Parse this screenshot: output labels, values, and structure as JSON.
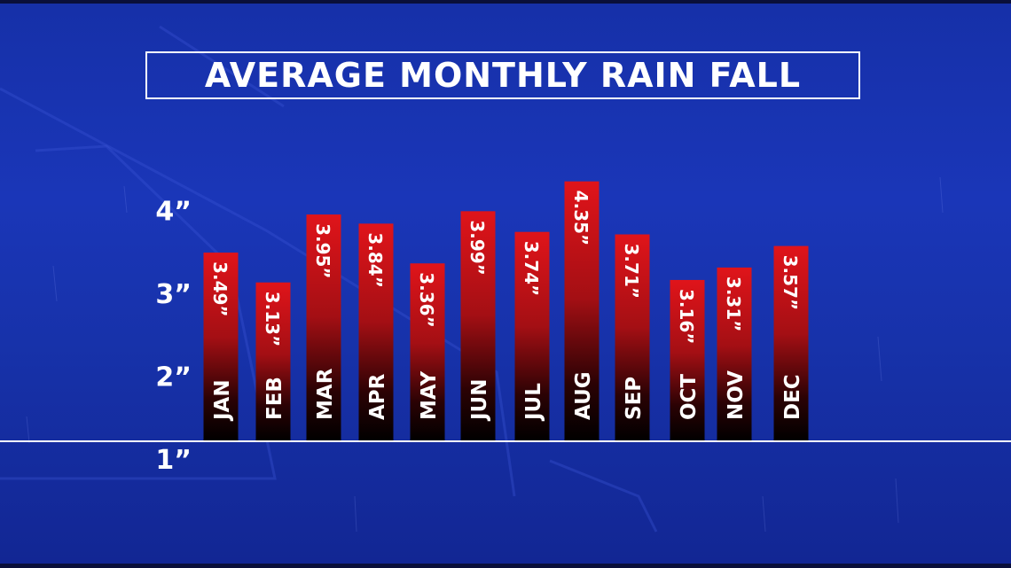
{
  "chart_data": {
    "type": "bar",
    "title": "AVERAGE MONTHLY RAIN FALL",
    "categories": [
      "JAN",
      "FEB",
      "MAR",
      "APR",
      "MAY",
      "JUN",
      "JUL",
      "AUG",
      "SEP",
      "OCT",
      "NOV",
      "DEC"
    ],
    "values": [
      3.49,
      3.13,
      3.95,
      3.84,
      3.36,
      3.99,
      3.74,
      4.35,
      3.71,
      3.16,
      3.31,
      3.57
    ],
    "value_labels": [
      "3.49”",
      "3.13”",
      "3.95”",
      "3.84”",
      "3.36”",
      "3.99”",
      "3.74”",
      "4.35”",
      "3.71”",
      "3.16”",
      "3.31”",
      "3.57”"
    ],
    "y_ticks": [
      1,
      2,
      3,
      4
    ],
    "y_tick_labels": [
      "1”",
      "2”",
      "3”",
      "4”"
    ],
    "ylim": [
      0,
      4.5
    ],
    "grid": false,
    "legend": "none",
    "xlabel": "",
    "ylabel": ""
  },
  "colors": {
    "background": "#1a36b8",
    "bar_top": "#e0141a",
    "bar_mid": "#8a0d10",
    "bar_bottom": "#000000",
    "text": "#ffffff",
    "baseline": "#ffffff"
  }
}
